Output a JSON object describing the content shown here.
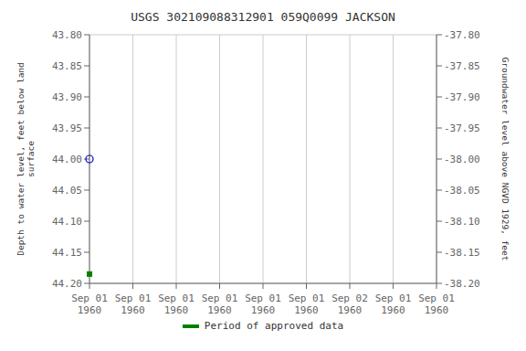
{
  "chart_data": {
    "type": "scatter",
    "title": "USGS 302109088312901 059Q0099  JACKSON",
    "x_label": null,
    "y_label": "Depth to water level, feet below land\n surface",
    "y2_label": "Groundwater level above NGVD 1929, feet",
    "categories": [
      "Sep 01\n1960",
      "Sep 01\n1960",
      "Sep 01\n1960",
      "Sep 01\n1960",
      "Sep 01\n1960",
      "Sep 01\n1960",
      "Sep 02\n1960"
    ],
    "series": [
      {
        "color": "#0000cc",
        "marker": "circle",
        "values": [
          null,
          null,
          null,
          44.0,
          null,
          null,
          null
        ]
      },
      {
        "name": "Period of approved data",
        "color": "#008000",
        "marker": "square",
        "values": [
          null,
          null,
          null,
          44.185,
          null,
          null,
          null
        ]
      }
    ],
    "ylim": [
      44.2,
      43.8
    ],
    "yticks": [
      {
        "value": 43.8,
        "label": "43.80"
      },
      43.85,
      {
        "value": 43.9,
        "label": "43.90"
      },
      43.95,
      {
        "value": 44.0,
        "label": "44.00"
      },
      44.05,
      {
        "value": 44.1,
        "label": "44.10"
      },
      44.15,
      {
        "value": 44.2,
        "label": "44.20"
      }
    ],
    "y2lim": [
      -38.2,
      -37.8
    ],
    "y2ticks": [
      {
        "value": -37.8,
        "label": "-37.80"
      },
      -37.85,
      {
        "value": -37.9,
        "label": "-37.90"
      },
      -37.95,
      {
        "value": -38.0,
        "label": "-38.00"
      },
      -38.05,
      {
        "value": -38.1,
        "label": "-38.10"
      },
      -38.15,
      {
        "value": -38.2,
        "label": "-38.20"
      }
    ],
    "grid": true,
    "legend": "bottom"
  }
}
